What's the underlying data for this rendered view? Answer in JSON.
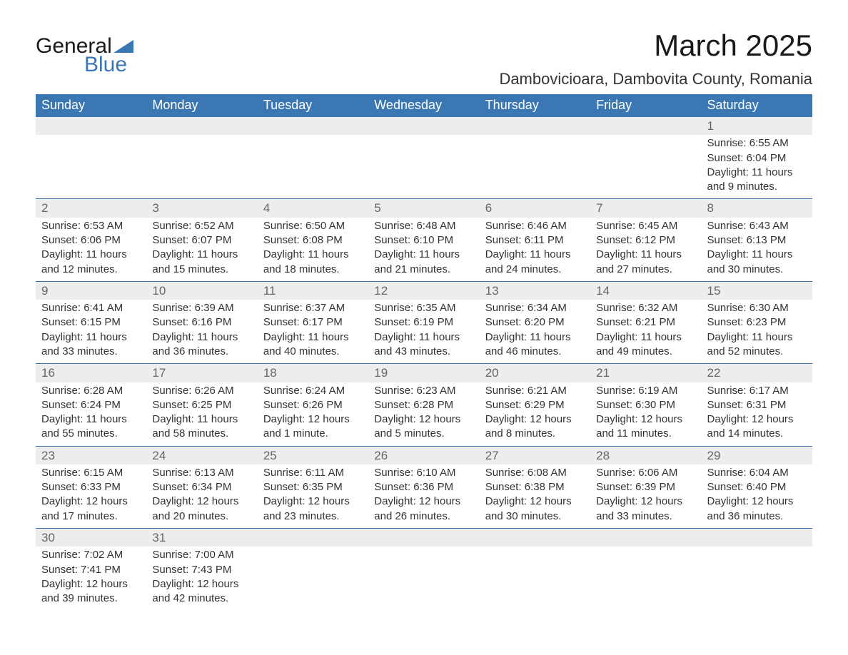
{
  "logo": {
    "text1": "General",
    "text2": "Blue",
    "triangle_color": "#3a77b3"
  },
  "title": "March 2025",
  "location": "Dambovicioara, Dambovita County, Romania",
  "colors": {
    "header_bg": "#3a77b3",
    "header_fg": "#ffffff",
    "daynum_bg": "#ededed",
    "border": "#3a77b3",
    "text": "#333333"
  },
  "day_headers": [
    "Sunday",
    "Monday",
    "Tuesday",
    "Wednesday",
    "Thursday",
    "Friday",
    "Saturday"
  ],
  "weeks": [
    [
      null,
      null,
      null,
      null,
      null,
      null,
      {
        "n": "1",
        "sr": "6:55 AM",
        "ss": "6:04 PM",
        "dl": "11 hours and 9 minutes."
      }
    ],
    [
      {
        "n": "2",
        "sr": "6:53 AM",
        "ss": "6:06 PM",
        "dl": "11 hours and 12 minutes."
      },
      {
        "n": "3",
        "sr": "6:52 AM",
        "ss": "6:07 PM",
        "dl": "11 hours and 15 minutes."
      },
      {
        "n": "4",
        "sr": "6:50 AM",
        "ss": "6:08 PM",
        "dl": "11 hours and 18 minutes."
      },
      {
        "n": "5",
        "sr": "6:48 AM",
        "ss": "6:10 PM",
        "dl": "11 hours and 21 minutes."
      },
      {
        "n": "6",
        "sr": "6:46 AM",
        "ss": "6:11 PM",
        "dl": "11 hours and 24 minutes."
      },
      {
        "n": "7",
        "sr": "6:45 AM",
        "ss": "6:12 PM",
        "dl": "11 hours and 27 minutes."
      },
      {
        "n": "8",
        "sr": "6:43 AM",
        "ss": "6:13 PM",
        "dl": "11 hours and 30 minutes."
      }
    ],
    [
      {
        "n": "9",
        "sr": "6:41 AM",
        "ss": "6:15 PM",
        "dl": "11 hours and 33 minutes."
      },
      {
        "n": "10",
        "sr": "6:39 AM",
        "ss": "6:16 PM",
        "dl": "11 hours and 36 minutes."
      },
      {
        "n": "11",
        "sr": "6:37 AM",
        "ss": "6:17 PM",
        "dl": "11 hours and 40 minutes."
      },
      {
        "n": "12",
        "sr": "6:35 AM",
        "ss": "6:19 PM",
        "dl": "11 hours and 43 minutes."
      },
      {
        "n": "13",
        "sr": "6:34 AM",
        "ss": "6:20 PM",
        "dl": "11 hours and 46 minutes."
      },
      {
        "n": "14",
        "sr": "6:32 AM",
        "ss": "6:21 PM",
        "dl": "11 hours and 49 minutes."
      },
      {
        "n": "15",
        "sr": "6:30 AM",
        "ss": "6:23 PM",
        "dl": "11 hours and 52 minutes."
      }
    ],
    [
      {
        "n": "16",
        "sr": "6:28 AM",
        "ss": "6:24 PM",
        "dl": "11 hours and 55 minutes."
      },
      {
        "n": "17",
        "sr": "6:26 AM",
        "ss": "6:25 PM",
        "dl": "11 hours and 58 minutes."
      },
      {
        "n": "18",
        "sr": "6:24 AM",
        "ss": "6:26 PM",
        "dl": "12 hours and 1 minute."
      },
      {
        "n": "19",
        "sr": "6:23 AM",
        "ss": "6:28 PM",
        "dl": "12 hours and 5 minutes."
      },
      {
        "n": "20",
        "sr": "6:21 AM",
        "ss": "6:29 PM",
        "dl": "12 hours and 8 minutes."
      },
      {
        "n": "21",
        "sr": "6:19 AM",
        "ss": "6:30 PM",
        "dl": "12 hours and 11 minutes."
      },
      {
        "n": "22",
        "sr": "6:17 AM",
        "ss": "6:31 PM",
        "dl": "12 hours and 14 minutes."
      }
    ],
    [
      {
        "n": "23",
        "sr": "6:15 AM",
        "ss": "6:33 PM",
        "dl": "12 hours and 17 minutes."
      },
      {
        "n": "24",
        "sr": "6:13 AM",
        "ss": "6:34 PM",
        "dl": "12 hours and 20 minutes."
      },
      {
        "n": "25",
        "sr": "6:11 AM",
        "ss": "6:35 PM",
        "dl": "12 hours and 23 minutes."
      },
      {
        "n": "26",
        "sr": "6:10 AM",
        "ss": "6:36 PM",
        "dl": "12 hours and 26 minutes."
      },
      {
        "n": "27",
        "sr": "6:08 AM",
        "ss": "6:38 PM",
        "dl": "12 hours and 30 minutes."
      },
      {
        "n": "28",
        "sr": "6:06 AM",
        "ss": "6:39 PM",
        "dl": "12 hours and 33 minutes."
      },
      {
        "n": "29",
        "sr": "6:04 AM",
        "ss": "6:40 PM",
        "dl": "12 hours and 36 minutes."
      }
    ],
    [
      {
        "n": "30",
        "sr": "7:02 AM",
        "ss": "7:41 PM",
        "dl": "12 hours and 39 minutes."
      },
      {
        "n": "31",
        "sr": "7:00 AM",
        "ss": "7:43 PM",
        "dl": "12 hours and 42 minutes."
      },
      null,
      null,
      null,
      null,
      null
    ]
  ],
  "labels": {
    "sunrise": "Sunrise: ",
    "sunset": "Sunset: ",
    "daylight": "Daylight: "
  }
}
